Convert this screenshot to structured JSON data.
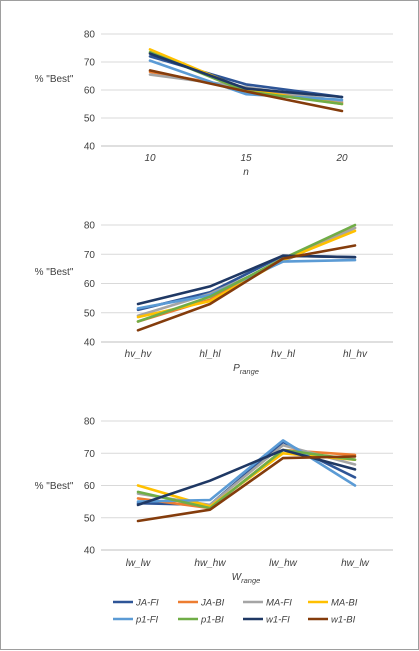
{
  "chart_data": [
    {
      "type": "line",
      "title": "",
      "ylabel": "% \"Best\"",
      "xlabel": "n",
      "xlabel_sub": "",
      "categories": [
        "10",
        "15",
        "20"
      ],
      "ylim": [
        40,
        80
      ],
      "yticks": [
        40,
        50,
        60,
        70,
        80
      ],
      "series": [
        {
          "name": "JA-FI",
          "values": [
            72.0,
            62.0,
            57.5
          ]
        },
        {
          "name": "JA-BI",
          "values": [
            66.5,
            60.5,
            55.5
          ]
        },
        {
          "name": "MA-FI",
          "values": [
            65.5,
            61.0,
            56.0
          ]
        },
        {
          "name": "MA-BI",
          "values": [
            74.5,
            60.0,
            55.0
          ]
        },
        {
          "name": "p1-FI",
          "values": [
            70.5,
            58.5,
            56.5
          ]
        },
        {
          "name": "p1-BI",
          "values": [
            73.5,
            59.5,
            55.0
          ]
        },
        {
          "name": "w1-FI",
          "values": [
            73.0,
            60.5,
            57.5
          ]
        },
        {
          "name": "w1-BI",
          "values": [
            67.0,
            59.5,
            52.5
          ]
        }
      ]
    },
    {
      "type": "line",
      "title": "",
      "ylabel": "% \"Best\"",
      "xlabel": "P",
      "xlabel_sub": "range",
      "categories": [
        "hv_hv",
        "hl_hl",
        "hv_hl",
        "hl_hv"
      ],
      "ylim": [
        40,
        80
      ],
      "yticks": [
        40,
        50,
        60,
        70,
        80
      ],
      "series": [
        {
          "name": "JA-FI",
          "values": [
            51.0,
            57.0,
            69.5,
            69.0
          ]
        },
        {
          "name": "JA-BI",
          "values": [
            47.0,
            54.5,
            68.5,
            79.0
          ]
        },
        {
          "name": "MA-FI",
          "values": [
            49.0,
            56.5,
            67.5,
            79.0
          ]
        },
        {
          "name": "MA-BI",
          "values": [
            48.5,
            54.0,
            68.0,
            78.0
          ]
        },
        {
          "name": "p1-FI",
          "values": [
            51.5,
            56.0,
            67.5,
            68.0
          ]
        },
        {
          "name": "p1-BI",
          "values": [
            47.0,
            55.5,
            68.5,
            80.0
          ]
        },
        {
          "name": "w1-FI",
          "values": [
            53.0,
            59.0,
            69.5,
            69.0
          ]
        },
        {
          "name": "w1-BI",
          "values": [
            44.0,
            53.0,
            68.5,
            73.0
          ]
        }
      ]
    },
    {
      "type": "line",
      "title": "",
      "ylabel": "% \"Best\"",
      "xlabel": "W",
      "xlabel_sub": "range",
      "categories": [
        "lw_lw",
        "hw_hw",
        "lw_hw",
        "hw_lw"
      ],
      "ylim": [
        40,
        80
      ],
      "yticks": [
        40,
        50,
        60,
        70,
        80
      ],
      "series": [
        {
          "name": "JA-FI",
          "values": [
            54.5,
            54.0,
            73.5,
            62.5
          ]
        },
        {
          "name": "JA-BI",
          "values": [
            56.0,
            53.0,
            71.0,
            69.5
          ]
        },
        {
          "name": "MA-FI",
          "values": [
            57.5,
            54.0,
            72.5,
            66.5
          ]
        },
        {
          "name": "MA-BI",
          "values": [
            60.0,
            53.5,
            70.0,
            68.0
          ]
        },
        {
          "name": "p1-FI",
          "values": [
            55.0,
            55.5,
            74.0,
            60.0
          ]
        },
        {
          "name": "p1-BI",
          "values": [
            58.0,
            53.0,
            71.0,
            68.0
          ]
        },
        {
          "name": "w1-FI",
          "values": [
            54.0,
            61.5,
            71.0,
            65.0
          ]
        },
        {
          "name": "w1-BI",
          "values": [
            49.0,
            52.5,
            68.5,
            69.0
          ]
        }
      ]
    }
  ],
  "legend": {
    "items": [
      {
        "name": "JA-FI",
        "color": "#2e5597"
      },
      {
        "name": "JA-BI",
        "color": "#ed7d31"
      },
      {
        "name": "MA-FI",
        "color": "#a5a5a5"
      },
      {
        "name": "MA-BI",
        "color": "#ffc000"
      },
      {
        "name": "p1-FI",
        "color": "#5b9bd5"
      },
      {
        "name": "p1-BI",
        "color": "#70ad47"
      },
      {
        "name": "w1-FI",
        "color": "#1f3864"
      },
      {
        "name": "w1-BI",
        "color": "#843c0c"
      }
    ]
  },
  "colors": {
    "gridline": "#d9d9d9",
    "axis": "#bfbfbf",
    "frame": "#9e9e9e"
  }
}
